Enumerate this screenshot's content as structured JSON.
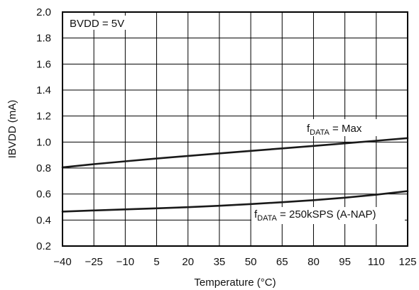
{
  "chart_data": {
    "type": "line",
    "xlabel": "Temperature (°C)",
    "ylabel": "IBVDD (mA)",
    "x": [
      -40,
      -25,
      -10,
      5,
      20,
      35,
      50,
      65,
      80,
      95,
      110,
      125
    ],
    "xlim": [
      -40,
      125
    ],
    "ylim": [
      0.2,
      2.0
    ],
    "xticks": [
      "−40",
      "−25",
      "−10",
      "5",
      "20",
      "35",
      "50",
      "65",
      "80",
      "95",
      "110",
      "125"
    ],
    "yticks": [
      "0.2",
      "0.4",
      "0.6",
      "0.8",
      "1.0",
      "1.2",
      "1.4",
      "1.6",
      "1.8",
      "2.0"
    ],
    "grid": true,
    "condition_label": "BVDD = 5V",
    "series": [
      {
        "label_main": "f",
        "label_sub": "DATA",
        "label_rest": " = Max",
        "values": [
          0.805,
          0.83,
          0.852,
          0.873,
          0.893,
          0.913,
          0.932,
          0.951,
          0.97,
          0.99,
          1.01,
          1.03
        ]
      },
      {
        "label_main": "f",
        "label_sub": "DATA",
        "label_rest": " = 250kSPS (A-NAP)",
        "values": [
          0.465,
          0.474,
          0.482,
          0.49,
          0.499,
          0.51,
          0.523,
          0.537,
          0.553,
          0.572,
          0.595,
          0.622
        ]
      }
    ]
  }
}
